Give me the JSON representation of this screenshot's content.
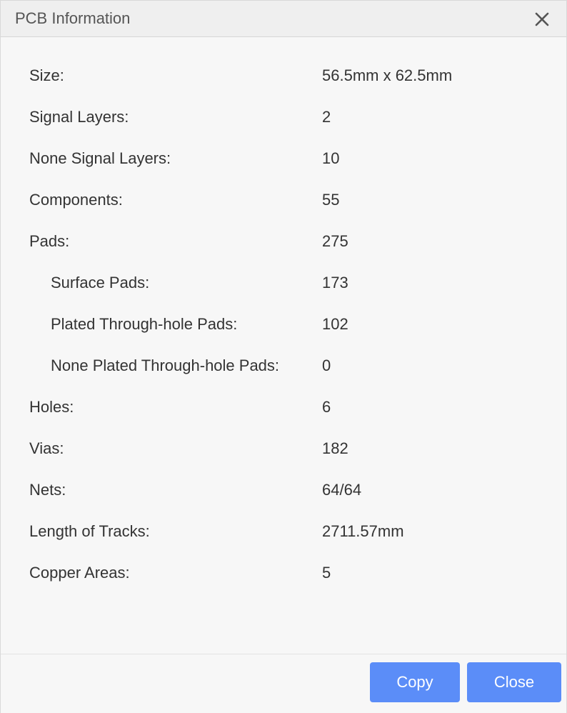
{
  "dialog": {
    "title": "PCB Information",
    "close_icon": "close-icon"
  },
  "info_rows": [
    {
      "label": "Size:",
      "value": "56.5mm x 62.5mm",
      "indent": false
    },
    {
      "label": "Signal Layers:",
      "value": "2",
      "indent": false
    },
    {
      "label": "None Signal Layers:",
      "value": "10",
      "indent": false
    },
    {
      "label": "Components:",
      "value": "55",
      "indent": false
    },
    {
      "label": "Pads:",
      "value": "275",
      "indent": false
    },
    {
      "label": "Surface Pads:",
      "value": "173",
      "indent": true
    },
    {
      "label": "Plated Through-hole Pads:",
      "value": "102",
      "indent": true
    },
    {
      "label": "None Plated Through-hole Pads:",
      "value": "0",
      "indent": true
    },
    {
      "label": "Holes:",
      "value": "6",
      "indent": false
    },
    {
      "label": "Vias:",
      "value": "182",
      "indent": false
    },
    {
      "label": "Nets:",
      "value": "64/64",
      "indent": false
    },
    {
      "label": "Length of Tracks:",
      "value": "2711.57mm",
      "indent": false
    },
    {
      "label": "Copper Areas:",
      "value": "5",
      "indent": false
    }
  ],
  "footer": {
    "copy_label": "Copy",
    "close_label": "Close"
  },
  "colors": {
    "primary_button": "#5b8df8",
    "titlebar": "#efefef",
    "background": "#f7f7f7"
  }
}
